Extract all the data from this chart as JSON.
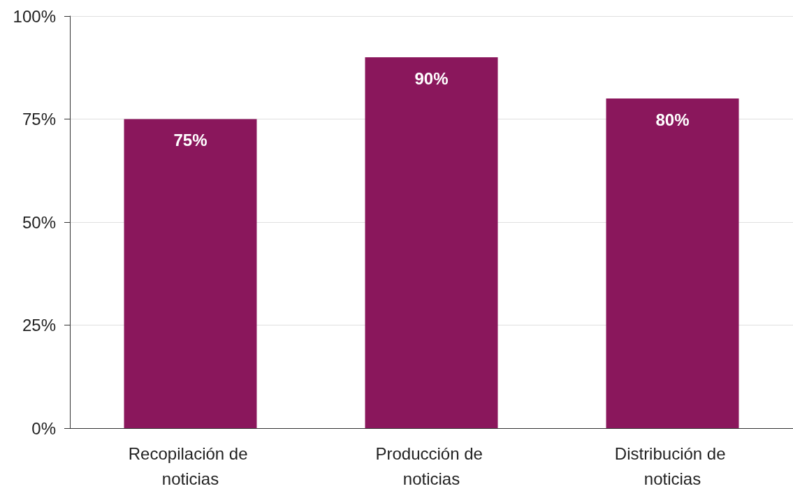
{
  "chart_data": {
    "type": "bar",
    "categories": [
      "Recopilación de noticias",
      "Producción de noticias",
      "Distribución de noticias"
    ],
    "values": [
      75,
      90,
      80
    ],
    "value_labels": [
      "75%",
      "90%",
      "80%"
    ],
    "color": "#8a175c",
    "ylim": [
      0,
      100
    ],
    "yticks": [
      {
        "value": 0,
        "label": "0%"
      },
      {
        "value": 25,
        "label": "25%"
      },
      {
        "value": 50,
        "label": "50%"
      },
      {
        "value": 75,
        "label": "75%"
      },
      {
        "value": 100,
        "label": "100%"
      }
    ],
    "grid": "y"
  }
}
